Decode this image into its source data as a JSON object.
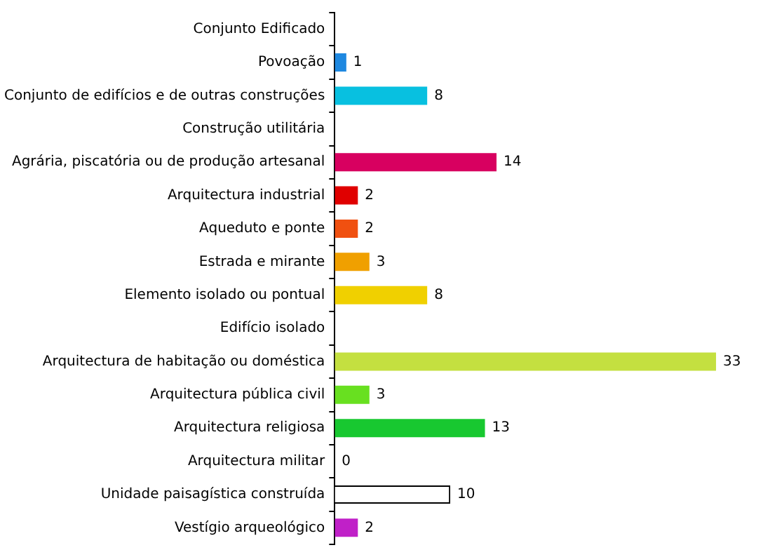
{
  "chart_data": {
    "type": "bar",
    "orientation": "horizontal",
    "categories": [
      "Conjunto Edificado",
      "Povoação",
      "Conjunto de edifícios e de outras construções",
      "Construção utilitária",
      "Agrária, piscatória ou de produção artesanal",
      "Arquitectura industrial",
      "Aqueduto e ponte",
      "Estrada e mirante",
      "Elemento isolado ou pontual",
      "Edifício isolado",
      "Arquitectura de habitação ou doméstica",
      "Arquitectura pública civil",
      "Arquitectura religiosa",
      "Arquitectura militar",
      "Unidade paisagística construída",
      "Vestígio arqueológico"
    ],
    "values": [
      null,
      1,
      8,
      null,
      14,
      2,
      2,
      3,
      8,
      null,
      33,
      3,
      13,
      0,
      10,
      2
    ],
    "colors": [
      "#000000",
      "#1e88e0",
      "#08c0e0",
      "#000000",
      "#d80060",
      "#e00000",
      "#f05010",
      "#f0a000",
      "#f0d000",
      "#000000",
      "#c4e040",
      "#68e020",
      "#18c830",
      "#000000",
      "#ffffff",
      "#c020c8"
    ],
    "tick_labels": "y",
    "data_labels": true,
    "grid": false,
    "legend": false
  }
}
